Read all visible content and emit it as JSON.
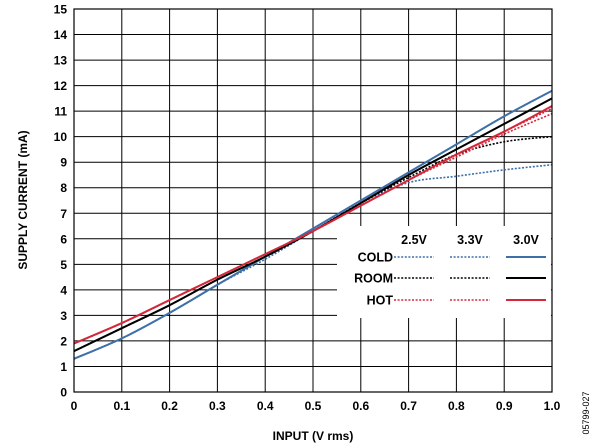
{
  "figure_id": "05799-027",
  "chart_data": {
    "type": "line",
    "xlabel": "INPUT (V rms)",
    "ylabel": "SUPPLY CURRENT (mA)",
    "xlim": [
      0,
      1.0
    ],
    "ylim": [
      0,
      15
    ],
    "x_ticks": [
      "0",
      "0.1",
      "0.2",
      "0.3",
      "0.4",
      "0.5",
      "0.6",
      "0.7",
      "0.8",
      "0.9",
      "1.0"
    ],
    "y_ticks": [
      "0",
      "1",
      "2",
      "3",
      "4",
      "5",
      "6",
      "7",
      "8",
      "9",
      "10",
      "11",
      "12",
      "13",
      "14",
      "15"
    ],
    "grid": true,
    "legend": {
      "placement": "inside lower-right",
      "columns": [
        "2.5V",
        "3.3V",
        "3.0V"
      ],
      "rows": [
        "COLD",
        "ROOM",
        "HOT"
      ]
    },
    "styles": {
      "COLD": "#3d6fa8",
      "ROOM": "#000000",
      "HOT": "#d4283a"
    },
    "x": [
      0,
      0.1,
      0.2,
      0.3,
      0.4,
      0.5,
      0.6,
      0.7,
      0.8,
      0.9,
      1.0
    ],
    "series": [
      {
        "temp": "COLD",
        "supply": "2.5V",
        "values": [
          1.3,
          2.1,
          3.1,
          4.2,
          5.2,
          6.3,
          7.4,
          8.2,
          8.45,
          8.7,
          8.9
        ]
      },
      {
        "temp": "COLD",
        "supply": "3.3V",
        "values": [
          1.3,
          2.1,
          3.1,
          4.2,
          5.3,
          6.4,
          7.5,
          8.6,
          9.7,
          10.8,
          11.8
        ]
      },
      {
        "temp": "COLD",
        "supply": "3.0V",
        "values": [
          1.3,
          2.1,
          3.1,
          4.2,
          5.3,
          6.4,
          7.5,
          8.6,
          9.7,
          10.8,
          11.8
        ]
      },
      {
        "temp": "ROOM",
        "supply": "2.5V",
        "values": [
          1.6,
          2.5,
          3.4,
          4.4,
          5.3,
          6.3,
          7.4,
          8.4,
          9.3,
          9.8,
          10.0
        ]
      },
      {
        "temp": "ROOM",
        "supply": "3.3V",
        "values": [
          1.6,
          2.5,
          3.4,
          4.4,
          5.3,
          6.3,
          7.4,
          8.5,
          9.5,
          10.5,
          11.5
        ]
      },
      {
        "temp": "ROOM",
        "supply": "3.0V",
        "values": [
          1.6,
          2.5,
          3.4,
          4.4,
          5.3,
          6.3,
          7.4,
          8.5,
          9.5,
          10.5,
          11.5
        ]
      },
      {
        "temp": "HOT",
        "supply": "2.5V",
        "values": [
          1.9,
          2.7,
          3.6,
          4.5,
          5.4,
          6.3,
          7.3,
          8.3,
          9.2,
          10.1,
          10.9
        ]
      },
      {
        "temp": "HOT",
        "supply": "3.3V",
        "values": [
          1.9,
          2.7,
          3.6,
          4.5,
          5.4,
          6.3,
          7.3,
          8.3,
          9.3,
          10.2,
          11.1
        ]
      },
      {
        "temp": "HOT",
        "supply": "3.0V",
        "values": [
          1.9,
          2.7,
          3.6,
          4.5,
          5.4,
          6.3,
          7.3,
          8.3,
          9.3,
          10.2,
          11.2
        ]
      }
    ]
  }
}
